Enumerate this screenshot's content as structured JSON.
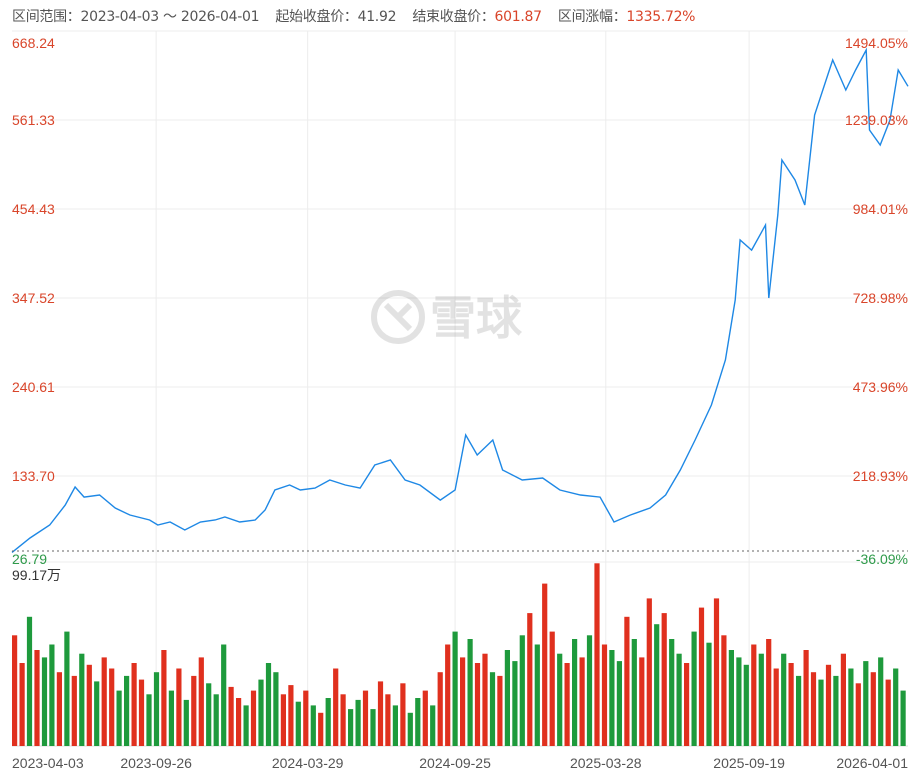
{
  "header": {
    "range_label": "区间范围：",
    "range_value": "2023-04-03 ～ 2026-04-01",
    "start_label": "起始收盘价：",
    "start_value": "41.92",
    "end_label": "结束收盘价：",
    "end_value": "601.87",
    "change_label": "区间涨幅：",
    "change_value": "1335.72%"
  },
  "watermark": {
    "text": "雪球",
    "icon": "xueqiu-logo-icon"
  },
  "colors": {
    "line": "#1e88e5",
    "up": "#e0301e",
    "down": "#1e9a3c",
    "label_red": "#d9452a",
    "label_green": "#2e9a4a",
    "grid": "#ececec"
  },
  "chart_data": {
    "type": "line",
    "title": "",
    "price_axis": {
      "ticks": [
        "668.24",
        "561.33",
        "454.43",
        "347.52",
        "240.61",
        "133.70"
      ],
      "min_label": "26.79",
      "range": [
        26.79,
        668.24
      ]
    },
    "percent_axis": {
      "ticks": [
        "1494.05%",
        "1239.03%",
        "984.01%",
        "728.98%",
        "473.96%",
        "218.93%"
      ],
      "min_label": "-36.09%"
    },
    "x_ticks": [
      "2023-04-03",
      "2023-09-26",
      "2024-03-29",
      "2024-09-25",
      "2025-03-28",
      "2025-09-19",
      "2026-04-01"
    ],
    "x_range": [
      "2023-04-03",
      "2026-04-01"
    ],
    "grid": true,
    "series": [
      {
        "points": [
          [
            "2023-04-03",
            41.92
          ],
          [
            "2023-04-25",
            59.2
          ],
          [
            "2023-05-19",
            74.8
          ],
          [
            "2023-06-07",
            98.8
          ],
          [
            "2023-06-19",
            120.5
          ],
          [
            "2023-06-30",
            108.4
          ],
          [
            "2023-07-19",
            110.9
          ],
          [
            "2023-08-07",
            95.3
          ],
          [
            "2023-08-25",
            86.8
          ],
          [
            "2023-09-18",
            80.9
          ],
          [
            "2023-09-28",
            74.8
          ],
          [
            "2023-10-13",
            78.4
          ],
          [
            "2023-10-31",
            68.8
          ],
          [
            "2023-11-19",
            78.4
          ],
          [
            "2023-12-07",
            80.9
          ],
          [
            "2023-12-19",
            84.4
          ],
          [
            "2024-01-06",
            78.4
          ],
          [
            "2024-01-25",
            80.9
          ],
          [
            "2024-02-06",
            92.9
          ],
          [
            "2024-02-18",
            116.9
          ],
          [
            "2024-03-07",
            122.9
          ],
          [
            "2024-03-20",
            116.9
          ],
          [
            "2024-04-07",
            119.2
          ],
          [
            "2024-04-25",
            128.9
          ],
          [
            "2024-05-14",
            122.9
          ],
          [
            "2024-06-01",
            119.2
          ],
          [
            "2024-06-19",
            146.9
          ],
          [
            "2024-07-08",
            152.9
          ],
          [
            "2024-07-26",
            128.9
          ],
          [
            "2024-08-13",
            122.9
          ],
          [
            "2024-09-07",
            104.8
          ],
          [
            "2024-09-25",
            116.9
          ],
          [
            "2024-10-08",
            182.9
          ],
          [
            "2024-10-22",
            158.9
          ],
          [
            "2024-11-10",
            176.9
          ],
          [
            "2024-11-22",
            140.9
          ],
          [
            "2024-12-16",
            128.9
          ],
          [
            "2025-01-10",
            131.3
          ],
          [
            "2025-01-31",
            116.9
          ],
          [
            "2025-02-25",
            110.9
          ],
          [
            "2025-03-21",
            108.4
          ],
          [
            "2025-04-07",
            78.4
          ],
          [
            "2025-04-27",
            86.8
          ],
          [
            "2025-05-21",
            95.3
          ],
          [
            "2025-06-09",
            110.9
          ],
          [
            "2025-06-27",
            140.9
          ],
          [
            "2025-07-15",
            176.9
          ],
          [
            "2025-08-04",
            219.0
          ],
          [
            "2025-08-21",
            273.0
          ],
          [
            "2025-09-02",
            345.1
          ],
          [
            "2025-09-08",
            417.2
          ],
          [
            "2025-09-22",
            405.1
          ],
          [
            "2025-10-09",
            435.2
          ],
          [
            "2025-10-13",
            347.5
          ],
          [
            "2025-10-24",
            447.2
          ],
          [
            "2025-10-29",
            513.3
          ],
          [
            "2025-11-14",
            489.2
          ],
          [
            "2025-11-26",
            459.2
          ],
          [
            "2025-12-08",
            567.3
          ],
          [
            "2025-12-22",
            609.4
          ],
          [
            "2025-12-30",
            633.4
          ],
          [
            "2026-01-15",
            597.4
          ],
          [
            "2026-01-27",
            621.4
          ],
          [
            "2026-02-09",
            645.4
          ],
          [
            "2026-02-13",
            549.3
          ],
          [
            "2026-02-26",
            531.3
          ],
          [
            "2026-03-10",
            561.3
          ],
          [
            "2026-03-20",
            621.4
          ],
          [
            "2026-04-01",
            601.87
          ]
        ]
      }
    ],
    "volume": {
      "max_label": "99.17万",
      "max": 99.17,
      "unit": "万",
      "values": [
        60,
        45,
        70,
        52,
        48,
        55,
        40,
        62,
        38,
        50,
        44,
        35,
        48,
        42,
        30,
        38,
        45,
        36,
        28,
        40,
        52,
        30,
        42,
        25,
        38,
        48,
        34,
        28,
        55,
        32,
        26,
        22,
        30,
        36,
        45,
        40,
        28,
        33,
        24,
        30,
        22,
        18,
        26,
        42,
        28,
        20,
        25,
        30,
        20,
        35,
        28,
        22,
        34,
        18,
        26,
        30,
        22,
        40,
        55,
        62,
        48,
        58,
        45,
        50,
        40,
        38,
        52,
        46,
        60,
        72,
        55,
        88,
        62,
        50,
        45,
        58,
        48,
        60,
        99,
        55,
        52,
        46,
        70,
        58,
        48,
        80,
        66,
        72,
        58,
        50,
        45,
        62,
        75,
        56,
        80,
        60,
        52,
        48,
        44,
        55,
        50,
        58,
        42,
        50,
        45,
        38,
        52,
        40,
        36,
        44,
        38,
        50,
        42,
        34,
        46,
        40,
        48,
        36,
        42,
        30
      ],
      "direction": "rrgrggrgrgrgrrggrrggrgrgrrgggrrgrgggrrgrgrgrrggrgrrgrggrgrrgrgrrgrgggrgrrgrgrgrrggrgrrgrggrgrgrrgggrgrrgrgrrgrgrgrgrgr"
    }
  }
}
